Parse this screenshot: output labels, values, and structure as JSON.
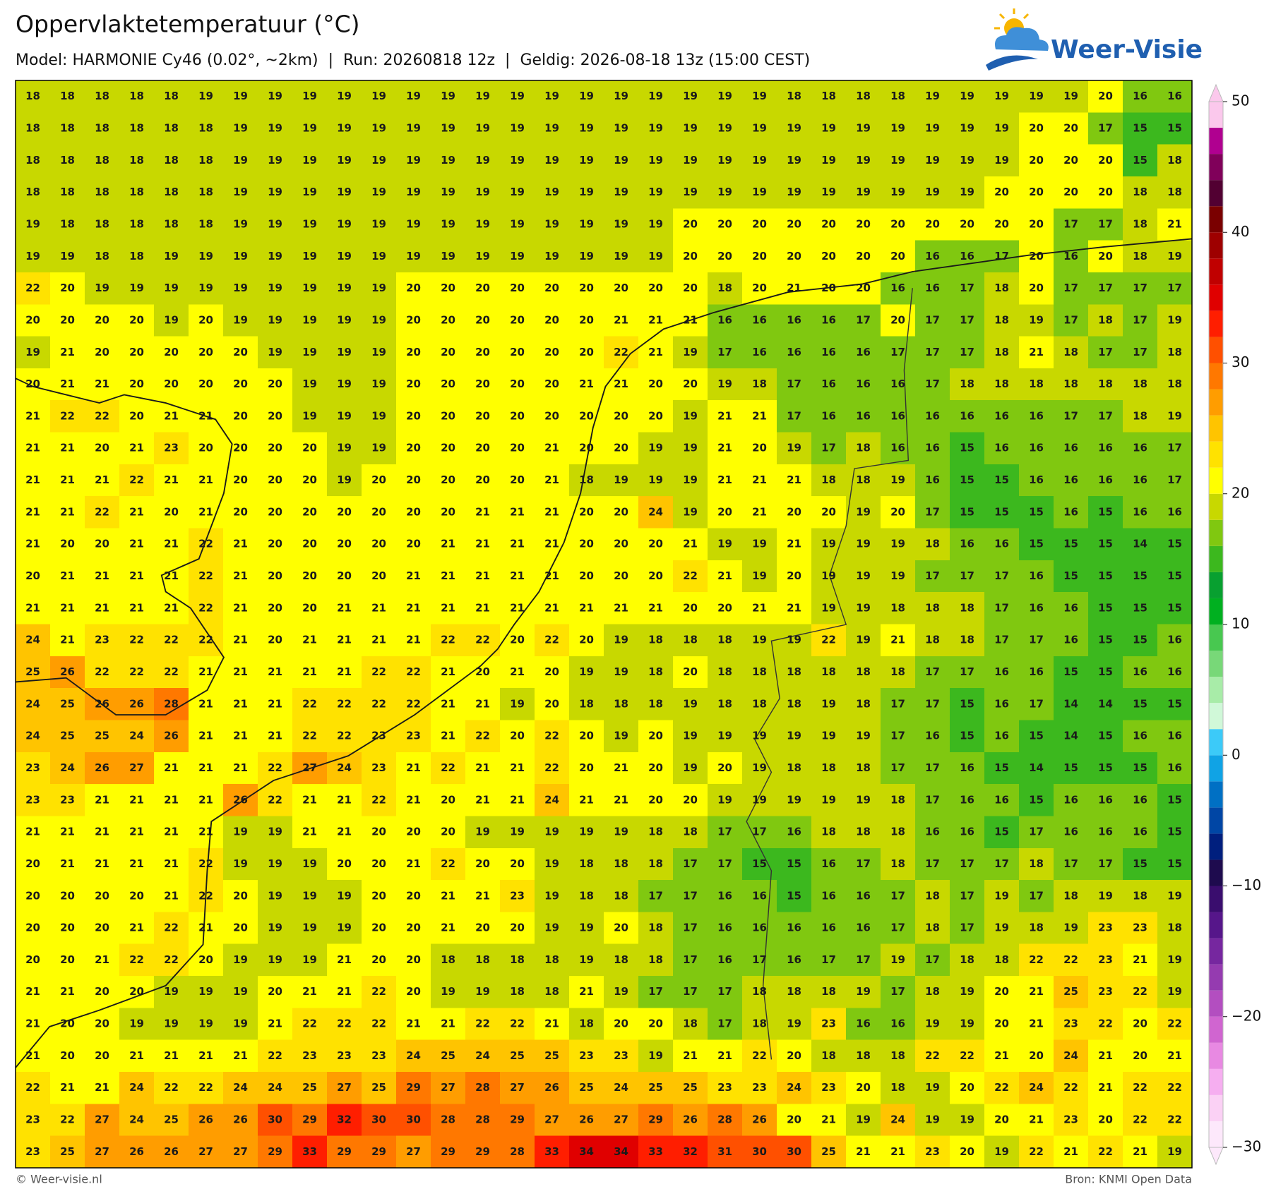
{
  "header": {
    "title": "Oppervlaktetemperatuur (°C)",
    "subtitle": "Model: HARMONIE Cy46 (0.02°, ~2km)  |  Run: 20260818 12z  |  Geldig: 2026-08-18 13z (15:00 CEST)",
    "logo": "Weer-Visie"
  },
  "map": {
    "rows": [
      [
        18,
        18,
        18,
        18,
        18,
        19,
        19,
        19,
        19,
        19,
        19,
        19,
        19,
        19,
        19,
        19,
        19,
        19,
        19,
        19,
        19,
        19,
        18,
        18,
        18,
        18,
        19,
        19,
        19,
        19,
        19,
        20,
        16,
        16
      ],
      [
        18,
        18,
        18,
        18,
        18,
        18,
        19,
        19,
        19,
        19,
        19,
        19,
        19,
        19,
        19,
        19,
        19,
        19,
        19,
        19,
        19,
        19,
        19,
        19,
        19,
        19,
        19,
        19,
        19,
        20,
        20,
        17,
        15,
        15
      ],
      [
        18,
        18,
        18,
        18,
        18,
        18,
        19,
        19,
        19,
        19,
        19,
        19,
        19,
        19,
        19,
        19,
        19,
        19,
        19,
        19,
        19,
        19,
        19,
        19,
        19,
        19,
        19,
        19,
        19,
        20,
        20,
        20,
        15,
        18
      ],
      [
        18,
        18,
        18,
        18,
        18,
        18,
        19,
        19,
        19,
        19,
        19,
        19,
        19,
        19,
        19,
        19,
        19,
        19,
        19,
        19,
        19,
        19,
        19,
        19,
        19,
        19,
        19,
        19,
        20,
        20,
        20,
        20,
        18,
        18
      ],
      [
        19,
        18,
        18,
        18,
        18,
        18,
        19,
        19,
        19,
        19,
        19,
        19,
        19,
        19,
        19,
        19,
        19,
        19,
        19,
        20,
        20,
        20,
        20,
        20,
        20,
        20,
        20,
        20,
        20,
        20,
        17,
        17,
        18,
        21
      ],
      [
        19,
        19,
        18,
        18,
        19,
        19,
        19,
        19,
        19,
        19,
        19,
        19,
        19,
        19,
        19,
        19,
        19,
        19,
        19,
        20,
        20,
        20,
        20,
        20,
        20,
        20,
        16,
        16,
        17,
        20,
        16,
        20,
        18,
        19
      ],
      [
        22,
        20,
        19,
        19,
        19,
        19,
        19,
        19,
        19,
        19,
        19,
        20,
        20,
        20,
        20,
        20,
        20,
        20,
        20,
        20,
        18,
        20,
        21,
        20,
        20,
        16,
        16,
        17,
        18,
        20,
        17,
        17,
        17,
        17
      ],
      [
        20,
        20,
        20,
        20,
        19,
        20,
        19,
        19,
        19,
        19,
        19,
        20,
        20,
        20,
        20,
        20,
        20,
        21,
        21,
        21,
        16,
        16,
        16,
        16,
        17,
        20,
        17,
        17,
        18,
        19,
        17,
        18,
        17,
        19
      ],
      [
        19,
        21,
        20,
        20,
        20,
        20,
        20,
        19,
        19,
        19,
        19,
        20,
        20,
        20,
        20,
        20,
        20,
        22,
        21,
        19,
        17,
        16,
        16,
        16,
        16,
        17,
        17,
        17,
        18,
        21,
        18,
        17,
        17,
        18
      ],
      [
        20,
        21,
        21,
        20,
        20,
        20,
        20,
        20,
        19,
        19,
        19,
        20,
        20,
        20,
        20,
        20,
        21,
        21,
        20,
        20,
        19,
        18,
        17,
        16,
        16,
        16,
        17,
        18,
        18,
        18,
        18,
        18,
        18,
        18
      ],
      [
        21,
        22,
        22,
        20,
        21,
        21,
        20,
        20,
        19,
        19,
        19,
        20,
        20,
        20,
        20,
        20,
        20,
        20,
        20,
        19,
        21,
        21,
        17,
        16,
        16,
        16,
        16,
        16,
        16,
        16,
        17,
        17,
        18,
        19
      ],
      [
        21,
        21,
        20,
        21,
        23,
        20,
        20,
        20,
        20,
        19,
        19,
        20,
        20,
        20,
        20,
        21,
        20,
        20,
        19,
        19,
        21,
        20,
        19,
        17,
        18,
        16,
        16,
        15,
        16,
        16,
        16,
        16,
        16,
        17
      ],
      [
        21,
        21,
        21,
        22,
        21,
        21,
        20,
        20,
        20,
        19,
        20,
        20,
        20,
        20,
        20,
        21,
        18,
        19,
        19,
        19,
        21,
        21,
        21,
        18,
        18,
        19,
        16,
        15,
        15,
        16,
        16,
        16,
        16,
        17
      ],
      [
        21,
        21,
        22,
        21,
        20,
        21,
        20,
        20,
        20,
        20,
        20,
        20,
        20,
        21,
        21,
        21,
        20,
        20,
        24,
        19,
        20,
        21,
        20,
        20,
        19,
        20,
        17,
        15,
        15,
        15,
        16,
        15,
        16,
        16
      ],
      [
        21,
        20,
        20,
        21,
        21,
        22,
        21,
        20,
        20,
        20,
        20,
        20,
        21,
        21,
        21,
        21,
        20,
        20,
        20,
        21,
        19,
        19,
        21,
        19,
        19,
        19,
        18,
        16,
        16,
        15,
        15,
        15,
        14,
        15
      ],
      [
        20,
        21,
        21,
        21,
        21,
        22,
        21,
        20,
        20,
        20,
        20,
        21,
        21,
        21,
        21,
        21,
        20,
        20,
        20,
        22,
        21,
        19,
        20,
        19,
        19,
        19,
        17,
        17,
        17,
        16,
        15,
        15,
        15,
        15
      ],
      [
        21,
        21,
        21,
        21,
        21,
        22,
        21,
        20,
        20,
        21,
        21,
        21,
        21,
        21,
        21,
        21,
        21,
        21,
        21,
        20,
        20,
        21,
        21,
        19,
        19,
        18,
        18,
        18,
        17,
        16,
        16,
        15,
        15,
        15
      ],
      [
        24,
        21,
        23,
        22,
        22,
        22,
        21,
        20,
        21,
        21,
        21,
        21,
        22,
        22,
        20,
        22,
        20,
        19,
        18,
        18,
        18,
        19,
        19,
        22,
        19,
        21,
        18,
        18,
        17,
        17,
        16,
        15,
        15,
        16
      ],
      [
        25,
        26,
        22,
        22,
        22,
        21,
        21,
        21,
        21,
        21,
        22,
        22,
        21,
        20,
        21,
        20,
        19,
        19,
        18,
        20,
        18,
        18,
        18,
        18,
        18,
        18,
        17,
        17,
        16,
        16,
        15,
        15,
        16,
        16
      ],
      [
        24,
        25,
        26,
        26,
        28,
        21,
        21,
        21,
        22,
        22,
        22,
        22,
        21,
        21,
        19,
        20,
        18,
        18,
        18,
        19,
        18,
        18,
        18,
        19,
        18,
        17,
        17,
        15,
        16,
        17,
        14,
        14,
        15,
        15
      ],
      [
        24,
        25,
        25,
        24,
        26,
        21,
        21,
        21,
        22,
        22,
        23,
        23,
        21,
        22,
        20,
        22,
        20,
        19,
        20,
        19,
        19,
        19,
        19,
        19,
        19,
        17,
        16,
        15,
        16,
        15,
        14,
        15,
        16,
        16
      ],
      [
        23,
        24,
        26,
        27,
        21,
        21,
        21,
        22,
        27,
        24,
        23,
        21,
        22,
        21,
        21,
        22,
        20,
        21,
        20,
        19,
        20,
        19,
        18,
        18,
        18,
        17,
        17,
        16,
        15,
        14,
        15,
        15,
        15,
        16
      ],
      [
        23,
        23,
        21,
        21,
        21,
        21,
        26,
        22,
        21,
        21,
        22,
        21,
        20,
        21,
        21,
        24,
        21,
        21,
        20,
        20,
        19,
        19,
        19,
        19,
        19,
        18,
        17,
        16,
        16,
        15,
        16,
        16,
        16,
        15
      ],
      [
        21,
        21,
        21,
        21,
        21,
        21,
        19,
        19,
        21,
        21,
        20,
        20,
        20,
        19,
        19,
        19,
        19,
        19,
        18,
        18,
        17,
        17,
        16,
        18,
        18,
        18,
        16,
        16,
        15,
        17,
        16,
        16,
        16,
        15
      ],
      [
        20,
        21,
        21,
        21,
        21,
        22,
        19,
        19,
        19,
        20,
        20,
        21,
        22,
        20,
        20,
        19,
        18,
        18,
        18,
        17,
        17,
        15,
        15,
        16,
        17,
        18,
        17,
        17,
        17,
        18,
        17,
        17,
        15,
        15
      ],
      [
        20,
        20,
        20,
        20,
        21,
        22,
        20,
        19,
        19,
        19,
        20,
        20,
        21,
        21,
        23,
        19,
        18,
        18,
        17,
        17,
        16,
        16,
        15,
        16,
        16,
        17,
        18,
        17,
        19,
        17,
        18,
        19,
        18,
        19
      ],
      [
        20,
        20,
        20,
        21,
        22,
        21,
        20,
        19,
        19,
        19,
        20,
        20,
        21,
        20,
        20,
        19,
        19,
        20,
        18,
        17,
        16,
        16,
        16,
        16,
        16,
        17,
        18,
        17,
        19,
        18,
        19,
        23,
        23,
        18
      ],
      [
        20,
        20,
        21,
        22,
        22,
        20,
        19,
        19,
        19,
        21,
        20,
        20,
        18,
        18,
        18,
        18,
        19,
        18,
        18,
        17,
        16,
        17,
        16,
        17,
        17,
        19,
        17,
        18,
        18,
        22,
        22,
        23,
        21,
        19
      ],
      [
        21,
        21,
        20,
        20,
        19,
        19,
        19,
        20,
        21,
        21,
        22,
        20,
        19,
        19,
        18,
        18,
        21,
        19,
        17,
        17,
        17,
        18,
        18,
        18,
        19,
        17,
        18,
        19,
        20,
        21,
        25,
        23,
        22,
        19
      ],
      [
        21,
        20,
        20,
        19,
        19,
        19,
        19,
        21,
        22,
        22,
        22,
        21,
        21,
        22,
        22,
        21,
        18,
        20,
        20,
        18,
        17,
        18,
        19,
        23,
        16,
        16,
        19,
        19,
        20,
        21,
        23,
        22,
        20,
        22
      ],
      [
        21,
        20,
        20,
        21,
        21,
        21,
        21,
        22,
        23,
        23,
        23,
        24,
        25,
        24,
        25,
        25,
        23,
        23,
        19,
        21,
        21,
        22,
        20,
        18,
        18,
        18,
        22,
        22,
        21,
        20,
        24,
        21,
        20,
        21
      ],
      [
        22,
        21,
        21,
        24,
        22,
        22,
        24,
        24,
        25,
        27,
        25,
        29,
        27,
        28,
        27,
        26,
        25,
        24,
        25,
        25,
        23,
        23,
        24,
        23,
        20,
        18,
        19,
        20,
        22,
        24,
        22,
        21,
        22,
        22
      ],
      [
        23,
        22,
        27,
        24,
        25,
        26,
        26,
        30,
        29,
        32,
        30,
        30,
        28,
        28,
        29,
        27,
        26,
        27,
        29,
        26,
        28,
        26,
        20,
        21,
        19,
        24,
        19,
        19,
        20,
        21,
        23,
        20,
        22,
        22
      ],
      [
        23,
        25,
        27,
        26,
        26,
        27,
        27,
        29,
        33,
        29,
        29,
        27,
        29,
        29,
        28,
        33,
        34,
        34,
        33,
        32,
        31,
        30,
        30,
        25,
        21,
        21,
        23,
        20,
        19,
        22,
        21,
        22,
        21,
        19
      ]
    ]
  },
  "colorbar": {
    "clim": [
      -30,
      50
    ],
    "ticks": [
      {
        "value": -30,
        "label": "−30"
      },
      {
        "value": -20,
        "label": "−20"
      },
      {
        "value": -10,
        "label": "−10"
      },
      0,
      10,
      20,
      30,
      40,
      50
    ],
    "colors": [
      "#fde8fb",
      "#fbd1f5",
      "#f6aef0",
      "#e889e2",
      "#d065d0",
      "#b34ec0",
      "#953bb0",
      "#76279f",
      "#56168a",
      "#3a0d6e",
      "#1e0b4e",
      "#001f7e",
      "#0046a5",
      "#0070c4",
      "#10a3e5",
      "#3ccaf8",
      "#d0f8d8",
      "#a8eca8",
      "#78d878",
      "#48c850",
      "#00b020",
      "#08a030",
      "#3cb81e",
      "#80c810",
      "#c8d800",
      "#ffff00",
      "#ffe200",
      "#ffc400",
      "#ff9d00",
      "#ff7800",
      "#ff5000",
      "#ff1e00",
      "#e00000",
      "#c00000",
      "#9e0000",
      "#7a0000",
      "#520032",
      "#80005a",
      "#b00090",
      "#fbc8ec"
    ]
  },
  "footer": {
    "left": "© Weer-visie.nl",
    "right": "Bron: KNMI Open Data"
  }
}
